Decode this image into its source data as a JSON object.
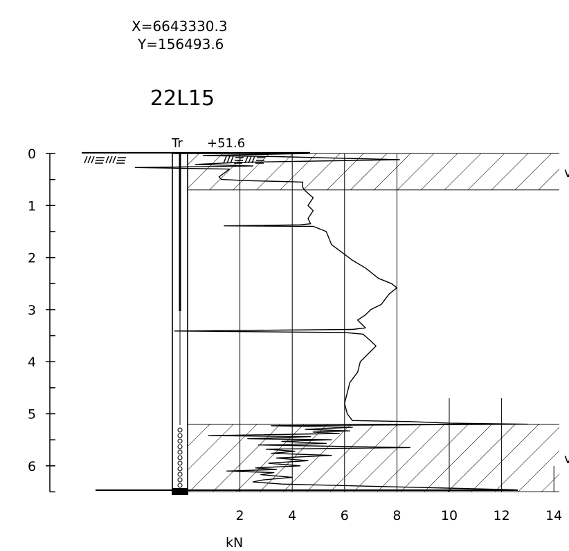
{
  "header": {
    "coord_x": "X=6643330.3",
    "coord_y": "Y=156493.6",
    "title": "22L15"
  },
  "borehole": {
    "method_label": "Tr",
    "elevation_label": "+51.6"
  },
  "chart_data": {
    "type": "line",
    "title": "22L15",
    "xlabel": "kN",
    "ylabel": "",
    "xlim": [
      0,
      14
    ],
    "ylim": [
      0,
      6.5
    ],
    "y_inverted": true,
    "x_ticks": [
      2,
      4,
      6,
      8,
      10,
      12,
      14
    ],
    "y_ticks": [
      0,
      1,
      2,
      3,
      4,
      5,
      6
    ],
    "grid_x": [
      2,
      4,
      6,
      8
    ],
    "grid_x_lower": [
      10,
      12,
      14
    ],
    "layers": [
      {
        "top": 0,
        "bottom": 0.7,
        "pattern": "hatch"
      },
      {
        "top": 5.2,
        "bottom": 6.5,
        "pattern": "hatch"
      }
    ],
    "series": [
      {
        "values": [
          {
            "x": 0,
            "y": 0
          },
          {
            "x": 4.6,
            "y": 0
          },
          {
            "x": 0.6,
            "y": 0.04
          },
          {
            "x": 3.4,
            "y": 0.06
          },
          {
            "x": 8.1,
            "y": 0.12
          },
          {
            "x": 2.0,
            "y": 0.17
          },
          {
            "x": 0.3,
            "y": 0.21
          },
          {
            "x": 2.5,
            "y": 0.24
          },
          {
            "x": -2.0,
            "y": 0.27
          },
          {
            "x": 1.6,
            "y": 0.3
          },
          {
            "x": 1.2,
            "y": 0.45
          },
          {
            "x": 1.3,
            "y": 0.5
          },
          {
            "x": 2.2,
            "y": 0.52
          },
          {
            "x": 3.8,
            "y": 0.54
          },
          {
            "x": 4.4,
            "y": 0.55
          },
          {
            "x": 4.4,
            "y": 0.65
          },
          {
            "x": 4.5,
            "y": 0.72
          },
          {
            "x": 4.8,
            "y": 0.85
          },
          {
            "x": 4.6,
            "y": 1.0
          },
          {
            "x": 4.8,
            "y": 1.1
          },
          {
            "x": 4.6,
            "y": 1.25
          },
          {
            "x": 4.7,
            "y": 1.35
          },
          {
            "x": 4.3,
            "y": 1.37
          },
          {
            "x": 1.4,
            "y": 1.39
          },
          {
            "x": 4.8,
            "y": 1.4
          },
          {
            "x": 5.3,
            "y": 1.5
          },
          {
            "x": 5.5,
            "y": 1.75
          },
          {
            "x": 5.9,
            "y": 1.9
          },
          {
            "x": 6.3,
            "y": 2.05
          },
          {
            "x": 6.8,
            "y": 2.2
          },
          {
            "x": 7.3,
            "y": 2.4
          },
          {
            "x": 7.8,
            "y": 2.5
          },
          {
            "x": 8.0,
            "y": 2.58
          },
          {
            "x": 7.7,
            "y": 2.7
          },
          {
            "x": 7.4,
            "y": 2.9
          },
          {
            "x": 7.0,
            "y": 3.0
          },
          {
            "x": 6.8,
            "y": 3.1
          },
          {
            "x": 6.5,
            "y": 3.2
          },
          {
            "x": 6.8,
            "y": 3.35
          },
          {
            "x": 6.3,
            "y": 3.38
          },
          {
            "x": -0.5,
            "y": 3.41
          },
          {
            "x": 6.0,
            "y": 3.44
          },
          {
            "x": 6.7,
            "y": 3.47
          },
          {
            "x": 7.0,
            "y": 3.6
          },
          {
            "x": 7.2,
            "y": 3.7
          },
          {
            "x": 6.9,
            "y": 3.85
          },
          {
            "x": 6.6,
            "y": 4.0
          },
          {
            "x": 6.5,
            "y": 4.2
          },
          {
            "x": 6.2,
            "y": 4.4
          },
          {
            "x": 6.1,
            "y": 4.6
          },
          {
            "x": 6.0,
            "y": 4.8
          },
          {
            "x": 6.1,
            "y": 5.0
          },
          {
            "x": 6.3,
            "y": 5.13
          },
          {
            "x": 8.5,
            "y": 5.15
          },
          {
            "x": 10.0,
            "y": 5.18
          },
          {
            "x": 13.0,
            "y": 5.2
          },
          {
            "x": 6.0,
            "y": 5.22
          },
          {
            "x": 3.2,
            "y": 5.23
          },
          {
            "x": 6.3,
            "y": 5.26
          },
          {
            "x": 4.5,
            "y": 5.3
          },
          {
            "x": 6.2,
            "y": 5.33
          },
          {
            "x": 4.8,
            "y": 5.35
          },
          {
            "x": 5.8,
            "y": 5.38
          },
          {
            "x": 0.8,
            "y": 5.42
          },
          {
            "x": 4.7,
            "y": 5.44
          },
          {
            "x": 2.3,
            "y": 5.48
          },
          {
            "x": 5.5,
            "y": 5.5
          },
          {
            "x": 3.6,
            "y": 5.53
          },
          {
            "x": 5.3,
            "y": 5.57
          },
          {
            "x": 2.7,
            "y": 5.6
          },
          {
            "x": 8.5,
            "y": 5.65
          },
          {
            "x": 3.0,
            "y": 5.68
          },
          {
            "x": 4.1,
            "y": 5.72
          },
          {
            "x": 3.2,
            "y": 5.76
          },
          {
            "x": 5.5,
            "y": 5.8
          },
          {
            "x": 3.4,
            "y": 5.85
          },
          {
            "x": 4.6,
            "y": 5.9
          },
          {
            "x": 3.1,
            "y": 5.95
          },
          {
            "x": 4.3,
            "y": 6.0
          },
          {
            "x": 2.6,
            "y": 6.04
          },
          {
            "x": 3.4,
            "y": 6.07
          },
          {
            "x": 1.5,
            "y": 6.1
          },
          {
            "x": 3.3,
            "y": 6.13
          },
          {
            "x": 2.8,
            "y": 6.17
          },
          {
            "x": 4.0,
            "y": 6.22
          },
          {
            "x": 2.9,
            "y": 6.27
          },
          {
            "x": 2.5,
            "y": 6.31
          },
          {
            "x": 3.6,
            "y": 6.35
          },
          {
            "x": 12.5,
            "y": 6.46
          }
        ]
      }
    ]
  }
}
